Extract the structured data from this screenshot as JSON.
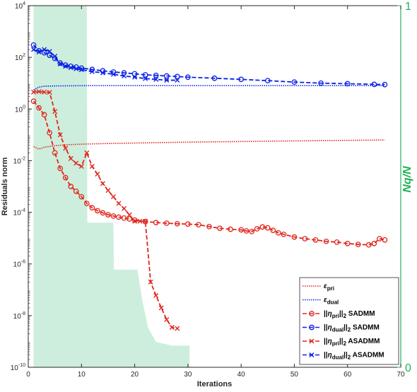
{
  "chart_data": {
    "type": "line",
    "xlabel": "Iterations",
    "ylabel": "Residuals norm",
    "y2label": "N_q/N",
    "xlim": [
      0,
      70
    ],
    "ylim": [
      1e-10,
      10000.0
    ],
    "yscale": "log",
    "y2lim": [
      0,
      1
    ],
    "x_ticks": [
      "0",
      "10",
      "20",
      "30",
      "40",
      "50",
      "60",
      "70"
    ],
    "y_ticks": [
      "10-10",
      "10-8",
      "10-6",
      "10-4",
      "10-2",
      "100",
      "102",
      "104"
    ],
    "y2_ticks": [
      "0",
      "1"
    ],
    "grid": false,
    "legend_position": "bottom-right",
    "colors": {
      "red": "#e1261c",
      "blue": "#0a22e6",
      "green": "#21b15a",
      "area": "#cdeedd"
    },
    "area": {
      "name": "Nq/N",
      "x": [
        1,
        11,
        11.1,
        16,
        16.1,
        20.5,
        21.5,
        22.5,
        24,
        27,
        30.3
      ],
      "y": [
        1,
        1,
        0.4,
        0.4,
        0.27,
        0.27,
        0.18,
        0.11,
        0.07,
        0.06,
        0.06
      ]
    },
    "series": [
      {
        "name": "ε_pri",
        "style": "dotted",
        "color": "#e1261c",
        "x": [
          1,
          2,
          3,
          5,
          8,
          11,
          15,
          20,
          25,
          30,
          40,
          50,
          60,
          67
        ],
        "y": [
          0.035,
          0.028,
          0.033,
          0.038,
          0.042,
          0.044,
          0.046,
          0.048,
          0.05,
          0.052,
          0.055,
          0.058,
          0.061,
          0.063
        ]
      },
      {
        "name": "ε_dual",
        "style": "dotted",
        "color": "#0a22e6",
        "x": [
          1,
          2,
          3,
          5,
          8,
          11,
          20,
          30,
          40,
          50,
          60,
          67
        ],
        "y": [
          5.5,
          7.0,
          7.6,
          7.8,
          7.9,
          8.0,
          8.0,
          8.0,
          8.0,
          8.0,
          8.0,
          8.0
        ]
      },
      {
        "name": "||η_pri||_2 SADMM",
        "style": "dashed",
        "marker": "circle",
        "color": "#e1261c",
        "x": [
          1,
          2,
          3,
          4,
          5,
          6,
          7,
          8,
          9,
          10,
          11,
          12,
          13,
          14,
          15,
          16,
          17,
          18,
          19,
          20,
          22,
          24,
          26,
          28,
          30,
          32,
          34,
          36,
          38,
          40,
          41,
          42,
          43,
          44,
          45,
          46,
          47,
          48,
          50,
          52,
          54,
          56,
          58,
          60,
          62,
          64,
          65,
          66,
          67
        ],
        "y": [
          2.0,
          1.1,
          0.6,
          0.12,
          0.02,
          0.005,
          0.0022,
          0.001,
          0.00065,
          0.0004,
          0.00022,
          0.00015,
          0.000115,
          9.5e-05,
          8e-05,
          7.2e-05,
          6.5e-05,
          6e-05,
          5.5e-05,
          5e-05,
          4.4e-05,
          4e-05,
          3.8e-05,
          3.6e-05,
          3.5e-05,
          3.3e-05,
          2.8e-05,
          2.4e-05,
          2.2e-05,
          2.1e-05,
          1.9e-05,
          1.8e-05,
          2.3e-05,
          2.7e-05,
          2.5e-05,
          2e-05,
          1.6e-05,
          1.4e-05,
          1.1e-05,
          9.5e-06,
          8.5e-06,
          7.5e-06,
          7e-06,
          6.2e-06,
          5.7e-06,
          5.5e-06,
          6.2e-06,
          9.5e-06,
          8.5e-06
        ]
      },
      {
        "name": "||η_dual||_2 SADMM",
        "style": "dashed",
        "marker": "circle",
        "color": "#0a22e6",
        "x": [
          1,
          2,
          3,
          4,
          5,
          6,
          7,
          8,
          9,
          10,
          12,
          14,
          16,
          18,
          20,
          22,
          24,
          26,
          28,
          30,
          35,
          40,
          45,
          50,
          55,
          60,
          65,
          67
        ],
        "y": [
          300,
          180,
          150,
          120,
          90,
          60,
          50,
          45,
          42,
          38,
          34,
          30,
          27,
          25,
          23,
          21,
          20,
          19,
          18,
          17,
          15.5,
          14,
          12.5,
          11,
          10,
          9.5,
          9.0,
          8.8
        ]
      },
      {
        "name": "||η_pri||_2 ASADMM",
        "style": "dashed",
        "marker": "x",
        "color": "#e1261c",
        "x": [
          1,
          2,
          3,
          4,
          5,
          6,
          7,
          8,
          9,
          10,
          11,
          12,
          13,
          14,
          15,
          16,
          17,
          18,
          19,
          20,
          21,
          22,
          23,
          24,
          25,
          26,
          27,
          28
        ],
        "y": [
          4.5,
          4.7,
          4.5,
          4.4,
          0.8,
          0.1,
          0.03,
          0.012,
          0.008,
          0.006,
          0.02,
          0.006,
          0.003,
          0.0013,
          0.0007,
          0.0004,
          0.00022,
          0.00014,
          8e-05,
          4.5e-05,
          4.5e-05,
          4.5e-05,
          2e-07,
          6e-08,
          2e-08,
          7e-09,
          3.5e-09,
          3.2e-09
        ]
      },
      {
        "name": "||η_dual||_2 ASADMM",
        "style": "dashed",
        "marker": "x",
        "color": "#0a22e6",
        "x": [
          1,
          2,
          3,
          4,
          5,
          6,
          7,
          8,
          9,
          10,
          12,
          14,
          16,
          18,
          20,
          22,
          24,
          26,
          28
        ],
        "y": [
          200,
          160,
          200,
          170,
          110,
          55,
          45,
          40,
          36,
          33,
          28,
          25,
          22,
          19,
          17,
          15,
          14,
          13,
          13
        ]
      }
    ],
    "legend": [
      {
        "text": "ε_pri",
        "series": 0
      },
      {
        "text": "ε_dual",
        "series": 1
      },
      {
        "text": "||η_pri||_2 SADMM",
        "series": 2
      },
      {
        "text": "||η_dual||_2 SADMM",
        "series": 3
      },
      {
        "text": "||η_pri||_2 ASADMM",
        "series": 4
      },
      {
        "text": "||η_dual||_2 ASADMM",
        "series": 5
      }
    ]
  }
}
